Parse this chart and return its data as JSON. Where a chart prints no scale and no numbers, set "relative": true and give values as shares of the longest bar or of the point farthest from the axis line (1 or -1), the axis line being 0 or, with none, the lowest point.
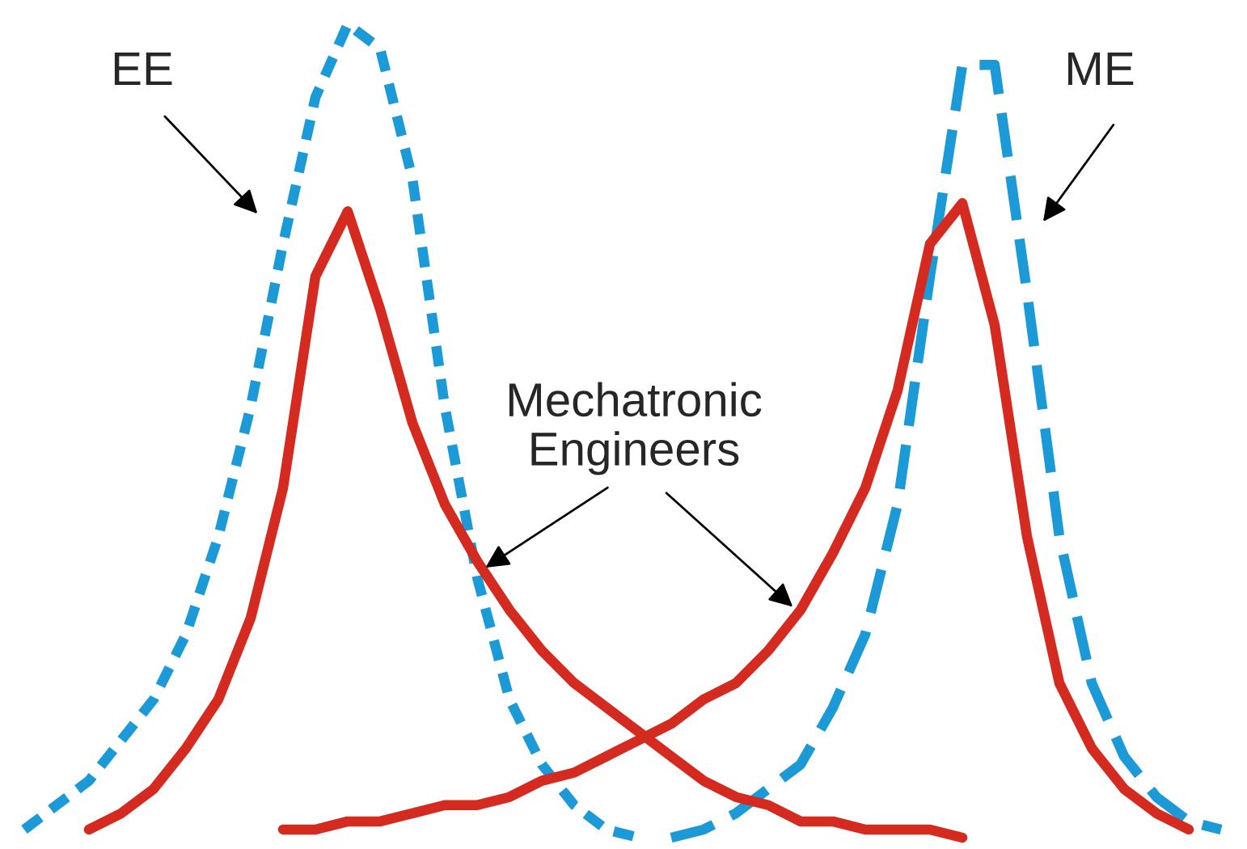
{
  "chart_data": {
    "type": "line",
    "relative": true,
    "legend": false,
    "categories": [
      null,
      null,
      null,
      null,
      null,
      null,
      null,
      null,
      null,
      null,
      null,
      null,
      null,
      null,
      null,
      null,
      null,
      null,
      null,
      null,
      null,
      null,
      null,
      null,
      null,
      null,
      null,
      null,
      null,
      null,
      null,
      null,
      null,
      null,
      null,
      null,
      null,
      null
    ],
    "series": [
      {
        "color": "#1b9ad7",
        "line_style": "dotted",
        "values": [
          0.01,
          0.04,
          0.07,
          0.12,
          0.17,
          0.25,
          0.37,
          0.53,
          0.73,
          0.91,
          1.0,
          0.97,
          0.81,
          0.53,
          0.32,
          0.17,
          0.09,
          0.04,
          0.01,
          0,
          null,
          null,
          null,
          null,
          null,
          null,
          null,
          null,
          null,
          null,
          null,
          null,
          null,
          null,
          null,
          null,
          null,
          null
        ]
      },
      {
        "color": "#1b9ad7",
        "line_style": "dashed",
        "values": [
          null,
          null,
          null,
          null,
          null,
          null,
          null,
          null,
          null,
          null,
          null,
          null,
          null,
          null,
          null,
          null,
          null,
          null,
          null,
          null,
          0,
          0.01,
          0.03,
          0.06,
          0.09,
          0.16,
          0.25,
          0.41,
          0.69,
          0.95,
          0.95,
          0.67,
          0.37,
          0.19,
          0.1,
          0.05,
          0.02,
          0.01
        ]
      },
      {
        "color": "#d42a1f",
        "line_style": "solid",
        "values": [
          null,
          null,
          0.01,
          0.03,
          0.06,
          0.11,
          0.17,
          0.27,
          0.43,
          0.69,
          0.77,
          0.65,
          0.51,
          0.41,
          0.34,
          0.28,
          0.23,
          0.19,
          0.16,
          0.13,
          0.1,
          0.07,
          0.05,
          0.04,
          0.02,
          0.02,
          0.01,
          0.01,
          0.01,
          0,
          null,
          null,
          null,
          null,
          null,
          null,
          null,
          null
        ]
      },
      {
        "color": "#d42a1f",
        "line_style": "solid",
        "values": [
          null,
          null,
          null,
          null,
          null,
          null,
          null,
          null,
          0.01,
          0.01,
          0.02,
          0.02,
          0.03,
          0.04,
          0.04,
          0.05,
          0.07,
          0.08,
          0.1,
          0.12,
          0.14,
          0.17,
          0.19,
          0.23,
          0.28,
          0.35,
          0.43,
          0.55,
          0.73,
          0.78,
          0.63,
          0.37,
          0.19,
          0.11,
          0.06,
          0.03,
          0.01,
          null
        ]
      }
    ],
    "annotations": [
      "EE",
      "ME",
      "Mechatronic\nEngineers"
    ]
  }
}
